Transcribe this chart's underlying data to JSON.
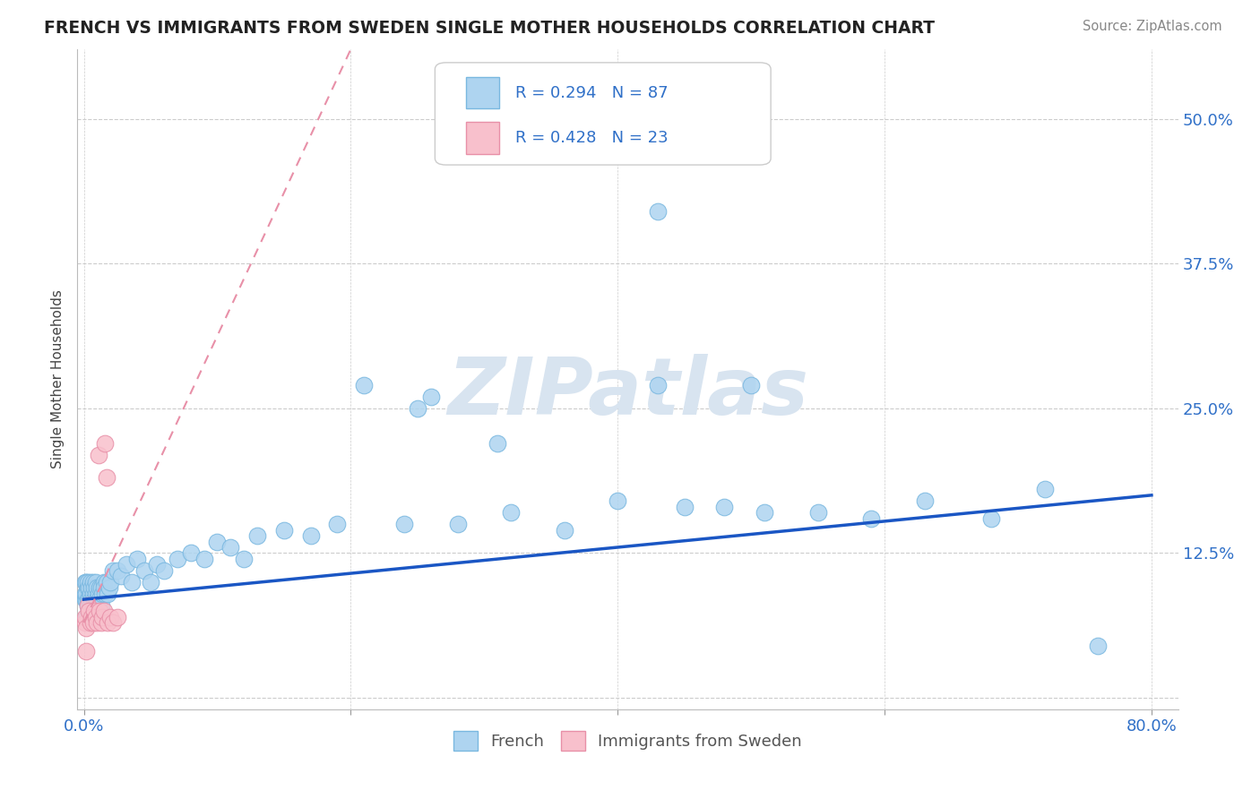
{
  "title": "FRENCH VS IMMIGRANTS FROM SWEDEN SINGLE MOTHER HOUSEHOLDS CORRELATION CHART",
  "source_text": "Source: ZipAtlas.com",
  "ylabel": "Single Mother Households",
  "xlim": [
    -0.005,
    0.82
  ],
  "ylim": [
    -0.01,
    0.56
  ],
  "xticks": [
    0.0,
    0.2,
    0.4,
    0.6,
    0.8
  ],
  "xticklabels": [
    "0.0%",
    "",
    "",
    "",
    "80.0%"
  ],
  "yticks": [
    0.0,
    0.125,
    0.25,
    0.375,
    0.5
  ],
  "yticklabels": [
    "",
    "12.5%",
    "25.0%",
    "37.5%",
    "50.0%"
  ],
  "grid_color": "#cccccc",
  "background_color": "#ffffff",
  "french_color": "#aed4f0",
  "french_edge_color": "#7ab8e0",
  "sweden_color": "#f8c0cc",
  "sweden_edge_color": "#e890a8",
  "french_line_color": "#1a56c4",
  "sweden_line_color": "#e890a8",
  "R_french": 0.294,
  "N_french": 87,
  "R_sweden": 0.428,
  "N_sweden": 23,
  "legend_R_color": "#3070c8",
  "watermark_color": "#d8e4f0",
  "french_line_x0": 0.0,
  "french_line_y0": 0.085,
  "french_line_x1": 0.8,
  "french_line_y1": 0.175,
  "sweden_line_x0": 0.0,
  "sweden_line_y0": 0.065,
  "sweden_line_x1": 0.2,
  "sweden_line_y1": 0.56,
  "french_scatter_x": [
    0.001,
    0.001,
    0.001,
    0.002,
    0.002,
    0.002,
    0.002,
    0.003,
    0.003,
    0.003,
    0.003,
    0.004,
    0.004,
    0.004,
    0.005,
    0.005,
    0.005,
    0.006,
    0.006,
    0.006,
    0.007,
    0.007,
    0.007,
    0.008,
    0.008,
    0.008,
    0.009,
    0.009,
    0.009,
    0.01,
    0.01,
    0.01,
    0.011,
    0.011,
    0.012,
    0.012,
    0.013,
    0.013,
    0.014,
    0.015,
    0.015,
    0.016,
    0.017,
    0.018,
    0.019,
    0.02,
    0.022,
    0.025,
    0.028,
    0.032,
    0.036,
    0.04,
    0.045,
    0.05,
    0.055,
    0.06,
    0.07,
    0.08,
    0.09,
    0.1,
    0.11,
    0.12,
    0.13,
    0.15,
    0.17,
    0.19,
    0.21,
    0.24,
    0.26,
    0.28,
    0.32,
    0.36,
    0.4,
    0.43,
    0.45,
    0.48,
    0.51,
    0.55,
    0.59,
    0.63,
    0.68,
    0.72,
    0.76,
    0.43,
    0.25,
    0.31,
    0.5
  ],
  "french_scatter_y": [
    0.085,
    0.09,
    0.1,
    0.07,
    0.085,
    0.09,
    0.1,
    0.08,
    0.085,
    0.095,
    0.1,
    0.075,
    0.085,
    0.095,
    0.08,
    0.09,
    0.1,
    0.075,
    0.085,
    0.095,
    0.08,
    0.09,
    0.1,
    0.075,
    0.085,
    0.095,
    0.08,
    0.09,
    0.1,
    0.075,
    0.085,
    0.095,
    0.08,
    0.09,
    0.085,
    0.095,
    0.08,
    0.095,
    0.09,
    0.1,
    0.095,
    0.09,
    0.1,
    0.09,
    0.095,
    0.1,
    0.11,
    0.11,
    0.105,
    0.115,
    0.1,
    0.12,
    0.11,
    0.1,
    0.115,
    0.11,
    0.12,
    0.125,
    0.12,
    0.135,
    0.13,
    0.12,
    0.14,
    0.145,
    0.14,
    0.15,
    0.27,
    0.15,
    0.26,
    0.15,
    0.16,
    0.145,
    0.17,
    0.27,
    0.165,
    0.165,
    0.16,
    0.16,
    0.155,
    0.17,
    0.155,
    0.18,
    0.045,
    0.42,
    0.25,
    0.22,
    0.27
  ],
  "sweden_scatter_x": [
    0.001,
    0.001,
    0.002,
    0.002,
    0.003,
    0.004,
    0.005,
    0.006,
    0.007,
    0.008,
    0.009,
    0.01,
    0.011,
    0.012,
    0.013,
    0.014,
    0.015,
    0.016,
    0.017,
    0.018,
    0.02,
    0.022,
    0.025
  ],
  "sweden_scatter_y": [
    0.065,
    0.07,
    0.04,
    0.06,
    0.08,
    0.075,
    0.065,
    0.07,
    0.065,
    0.075,
    0.07,
    0.065,
    0.21,
    0.075,
    0.065,
    0.07,
    0.075,
    0.22,
    0.19,
    0.065,
    0.07,
    0.065,
    0.07
  ]
}
